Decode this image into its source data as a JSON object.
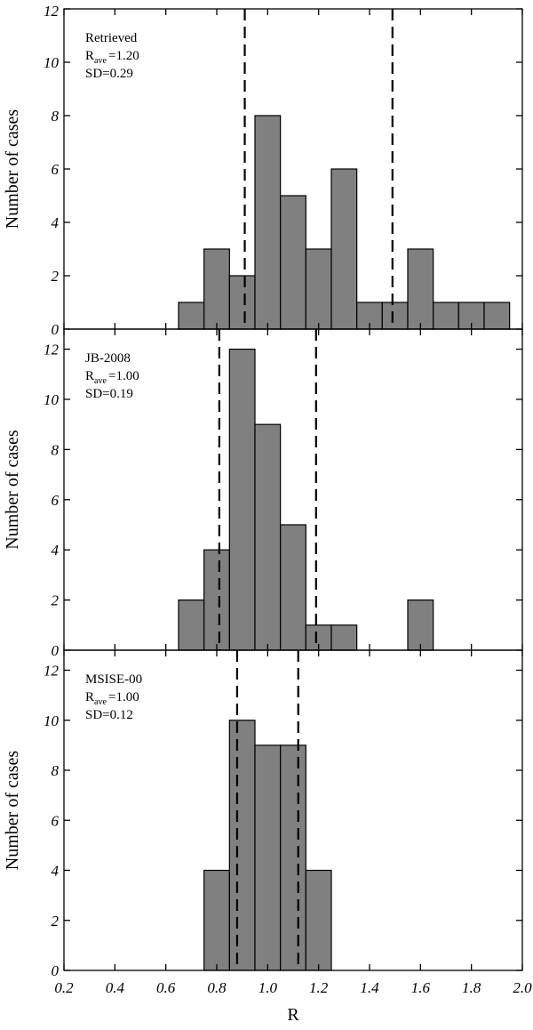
{
  "chart_data": [
    {
      "type": "bar",
      "x": [
        0.7,
        0.8,
        0.9,
        1.0,
        1.1,
        1.2,
        1.3,
        1.4,
        1.5,
        1.6,
        1.7,
        1.8,
        1.9
      ],
      "values": [
        1,
        3,
        2,
        8,
        5,
        3,
        6,
        1,
        1,
        3,
        1,
        1,
        1
      ],
      "bin_width": 0.1,
      "annotation": [
        "Retrieved",
        "R",
        "ave",
        "=1.20",
        "SD=0.29"
      ],
      "dashed_lines_x": [
        0.91,
        1.49
      ],
      "ylabel": "Number of cases",
      "ylim": [
        0,
        12
      ],
      "yticks": [
        "0",
        "2",
        "4",
        "6",
        "8",
        "10",
        "12"
      ]
    },
    {
      "type": "bar",
      "x": [
        0.7,
        0.8,
        0.9,
        1.0,
        1.1,
        1.2,
        1.3,
        1.6
      ],
      "values": [
        2,
        4,
        12,
        9,
        5,
        1,
        1,
        2
      ],
      "bin_width": 0.1,
      "annotation": [
        "JB-2008",
        "R",
        "ave",
        "=1.00",
        "SD=0.19"
      ],
      "dashed_lines_x": [
        0.81,
        1.19
      ],
      "ylabel": "Number of cases",
      "ylim": [
        0,
        12.8
      ],
      "yticks": [
        "0",
        "2",
        "4",
        "6",
        "8",
        "10",
        "12"
      ]
    },
    {
      "type": "bar",
      "x": [
        0.8,
        0.9,
        1.0,
        1.1,
        1.2
      ],
      "values": [
        4,
        10,
        9,
        9,
        4
      ],
      "bin_width": 0.1,
      "annotation": [
        "MSISE-00",
        "R",
        "ave",
        "=1.00",
        "SD=0.12"
      ],
      "dashed_lines_x": [
        0.88,
        1.12
      ],
      "ylabel": "Number of cases",
      "ylim": [
        0,
        12.8
      ],
      "yticks": [
        "0",
        "2",
        "4",
        "6",
        "8",
        "10",
        "12"
      ]
    }
  ],
  "x_axis": {
    "label": "R",
    "xlim": [
      0.2,
      2.0
    ],
    "ticks": [
      "0.2",
      "0.4",
      "0.6",
      "0.8",
      "1.0",
      "1.2",
      "1.4",
      "1.6",
      "1.8",
      "2.0"
    ]
  },
  "colors": {
    "bar_fill": "#808080",
    "bar_stroke": "#000000",
    "axis": "#000000",
    "background": "#ffffff"
  }
}
